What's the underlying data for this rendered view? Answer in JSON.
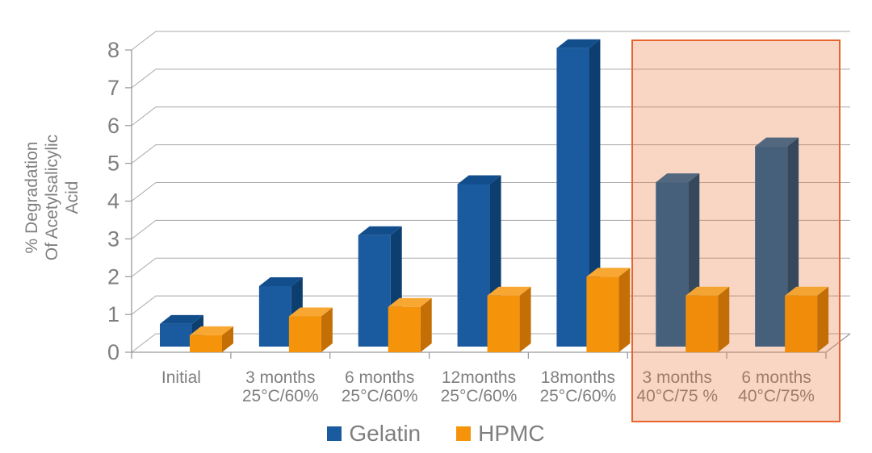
{
  "chart_data": {
    "type": "bar",
    "style": "3d-clustered-column",
    "title": "",
    "ylabel_lines": [
      "% Degradation",
      "Of Acetylsalicylic",
      "Acid"
    ],
    "xlabel": "",
    "y_ticks": [
      0,
      1,
      2,
      3,
      4,
      5,
      6,
      7,
      8
    ],
    "ylim": [
      0,
      8
    ],
    "grid": true,
    "legend_position": "bottom",
    "categories": [
      {
        "line1": "Initial",
        "line2": ""
      },
      {
        "line1": "3 months",
        "line2": "25°C/60%"
      },
      {
        "line1": "6 months",
        "line2": "25°C/60%"
      },
      {
        "line1": "12months",
        "line2": "25°C/60%"
      },
      {
        "line1": "18months",
        "line2": "25°C/60%"
      },
      {
        "line1": "3 months",
        "line2": "40°C/75 %"
      },
      {
        "line1": "6 months",
        "line2": "40°C/75%"
      }
    ],
    "series": [
      {
        "name": "Gelatin",
        "values": [
          0.6,
          1.6,
          2.95,
          4.3,
          7.9,
          4.35,
          5.3
        ],
        "color": "#1A5A9E",
        "color_top": "#134E8C",
        "color_side": "#0D3E70",
        "muted_color": "#46607B",
        "muted_top": "#53677F",
        "muted_side": "#36485C"
      },
      {
        "name": "HPMC",
        "values": [
          0.45,
          0.95,
          1.2,
          1.5,
          2.0,
          1.5,
          1.5
        ],
        "color": "#F5930A",
        "color_top": "#F8A733",
        "color_side": "#C46F05",
        "muted_color": "#F08C0A",
        "muted_top": "#F4A433",
        "muted_side": "#C26D05"
      }
    ],
    "highlight": {
      "description": "accelerated-conditions region",
      "category_indices": [
        5,
        6
      ],
      "categories": [
        "3 months 40°C/75 %",
        "6 months 40°C/75%"
      ],
      "fill": "#E87838",
      "fill_opacity": 0.3,
      "border": "#E8642E"
    },
    "colors": {
      "axis": "#9B9B9B",
      "grid": "#A8A8A8",
      "text": "#7F7F7F",
      "background": "#FFFFFF"
    }
  }
}
